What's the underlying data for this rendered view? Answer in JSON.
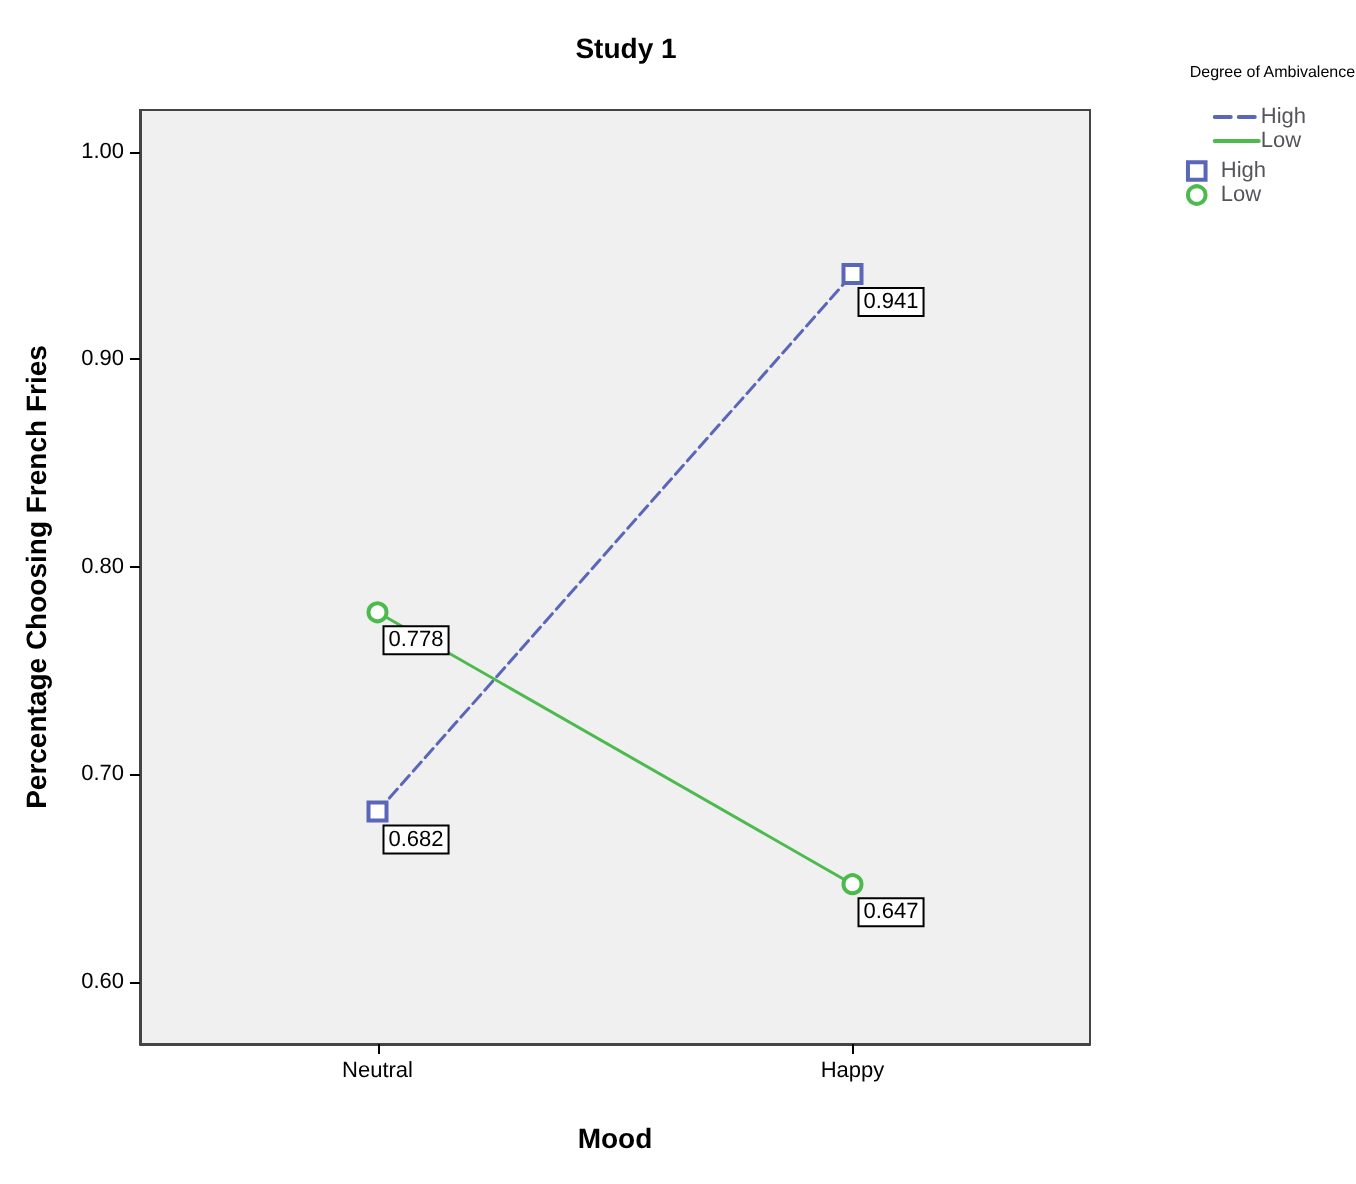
{
  "chart_data": {
    "type": "line",
    "title": "Study 1",
    "xlabel": "Mood",
    "ylabel": "Percentage Choosing French Fries",
    "legend_title": "Degree of Ambivalence",
    "categories": [
      "Neutral",
      "Happy"
    ],
    "series": [
      {
        "name": "High",
        "color": "#5a66b8",
        "values": [
          0.682,
          0.941
        ],
        "marker": "square",
        "line_style": "dashed"
      },
      {
        "name": "Low",
        "color": "#4cba4c",
        "values": [
          0.778,
          0.647
        ],
        "marker": "circle",
        "line_style": "solid"
      }
    ],
    "ylim": [
      0.57,
      1.02
    ],
    "yticks": [
      {
        "value": 0.6,
        "label": "0.60"
      },
      {
        "value": 0.7,
        "label": "0.70"
      },
      {
        "value": 0.8,
        "label": "0.80"
      },
      {
        "value": 0.9,
        "label": "0.90"
      },
      {
        "value": 1.0,
        "label": "1.00"
      }
    ],
    "data_labels": true,
    "grid": false,
    "legend": "top right"
  }
}
